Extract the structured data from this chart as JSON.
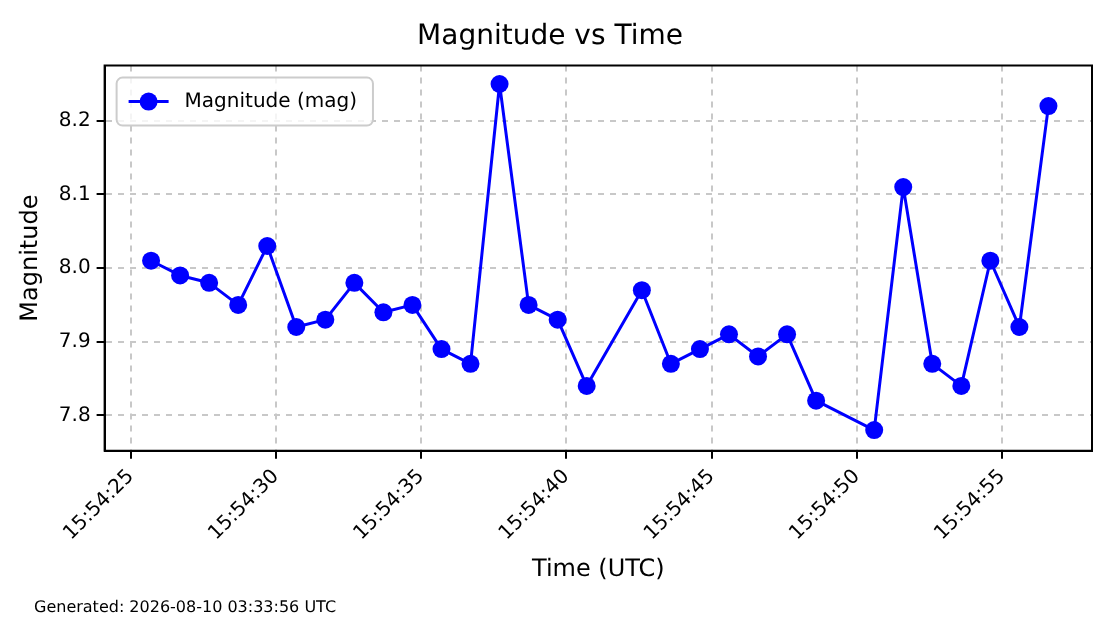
{
  "chart_data": {
    "type": "line",
    "title": "Magnitude vs Time",
    "xlabel": "Time (UTC)",
    "ylabel": "Magnitude",
    "annotations": [
      "Generated: 2026-08-10 03:33:56 UTC"
    ],
    "x": [
      "2026-08-10T15:54:25.7",
      "2026-08-10T15:54:26.7",
      "2026-08-10T15:54:27.7",
      "2026-08-10T15:54:28.7",
      "2026-08-10T15:54:29.7",
      "2026-08-10T15:54:30.7",
      "2026-08-10T15:54:31.7",
      "2026-08-10T15:54:32.7",
      "2026-08-10T15:54:33.7",
      "2026-08-10T15:54:34.7",
      "2026-08-10T15:54:35.7",
      "2026-08-10T15:54:36.7",
      "2026-08-10T15:54:37.7",
      "2026-08-10T15:54:38.7",
      "2026-08-10T15:54:39.7",
      "2026-08-10T15:54:40.7",
      "2026-08-10T15:54:42.6",
      "2026-08-10T15:54:43.6",
      "2026-08-10T15:54:44.6",
      "2026-08-10T15:54:45.6",
      "2026-08-10T15:54:46.6",
      "2026-08-10T15:54:47.6",
      "2026-08-10T15:54:48.6",
      "2026-08-10T15:54:50.6",
      "2026-08-10T15:54:51.6",
      "2026-08-10T15:54:52.6",
      "2026-08-10T15:54:53.6",
      "2026-08-10T15:54:54.6",
      "2026-08-10T15:54:55.6",
      "2026-08-10T15:54:56.6"
    ],
    "series": [
      {
        "name": "Magnitude (mag)",
        "color": "#0000ff",
        "values": [
          8.01,
          7.99,
          7.98,
          7.95,
          8.03,
          7.92,
          7.93,
          7.98,
          7.94,
          7.95,
          7.89,
          7.87,
          8.25,
          7.95,
          7.93,
          7.84,
          7.97,
          7.87,
          7.89,
          7.91,
          7.88,
          7.91,
          7.82,
          7.78,
          8.11,
          7.87,
          7.84,
          8.01,
          7.92,
          8.22
        ]
      }
    ],
    "xlim": [
      "2026-08-10T15:54:24.1",
      "2026-08-10T15:54:58.1"
    ],
    "xticks": [
      {
        "value": "2026-08-10T15:54:25",
        "label": "15:54:25"
      },
      {
        "value": "2026-08-10T15:54:30",
        "label": "15:54:30"
      },
      {
        "value": "2026-08-10T15:54:35",
        "label": "15:54:35"
      },
      {
        "value": "2026-08-10T15:54:40",
        "label": "15:54:40"
      },
      {
        "value": "2026-08-10T15:54:45",
        "label": "15:54:45"
      },
      {
        "value": "2026-08-10T15:54:50",
        "label": "15:54:50"
      },
      {
        "value": "2026-08-10T15:54:55",
        "label": "15:54:55"
      }
    ],
    "ylim": [
      7.752,
      8.275
    ],
    "yticks": [
      7.8,
      7.9,
      {
        "value": 8,
        "label": "8.0"
      },
      8.1,
      8.2
    ],
    "grid": true,
    "legend": "top left",
    "marker": "circle",
    "line_style": "solid"
  }
}
